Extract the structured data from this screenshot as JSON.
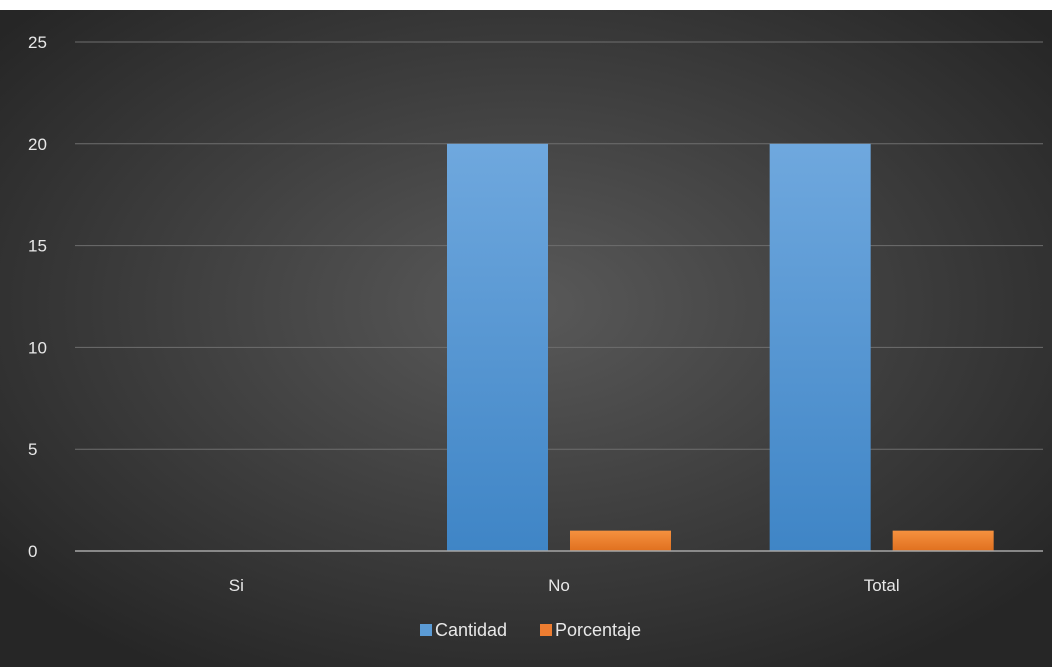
{
  "chart_data": {
    "type": "bar",
    "title": "",
    "xlabel": "",
    "ylabel": "",
    "categories": [
      "Si",
      "No",
      "Total"
    ],
    "series": [
      {
        "name": "Cantidad",
        "values": [
          0,
          20,
          20
        ],
        "color": "#5b9bd5"
      },
      {
        "name": "Porcentaje",
        "values": [
          0,
          1,
          1
        ],
        "color": "#ed7d31"
      }
    ],
    "ylim": [
      0,
      25
    ],
    "yticks": [
      "0",
      "5",
      "10",
      "15",
      "20",
      "25"
    ],
    "grid": true,
    "legend_position": "bottom",
    "background": "dark-radial"
  }
}
